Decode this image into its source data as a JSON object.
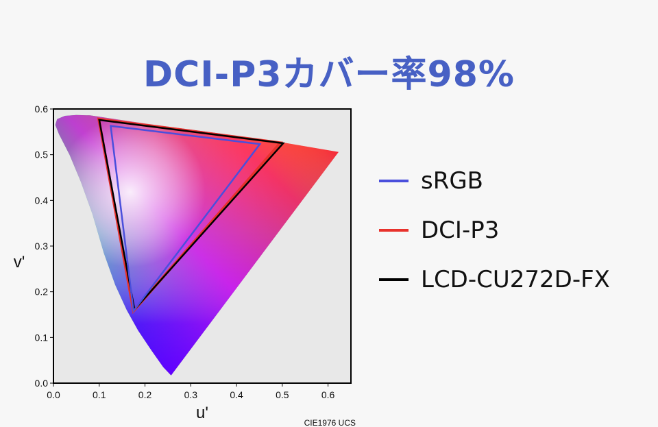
{
  "title": "DCI-P3カバー率98%",
  "chart_data": {
    "type": "scatter",
    "subtype": "chromaticity-diagram",
    "title": "DCI-P3カバー率98%",
    "xlabel": "u'",
    "ylabel": "v'",
    "annotation": "CIE1976 UCS",
    "xlim": [
      0.0,
      0.65
    ],
    "ylim": [
      0.0,
      0.6
    ],
    "xticks": [
      "0.0",
      "0.1",
      "0.2",
      "0.3",
      "0.4",
      "0.5",
      "0.6"
    ],
    "yticks": [
      "0.0",
      "0.1",
      "0.2",
      "0.3",
      "0.4",
      "0.5",
      "0.6"
    ],
    "grid": false,
    "legend_position": "right",
    "series": [
      {
        "name": "sRGB",
        "color": "#4a4fdc",
        "points": [
          [
            0.451,
            0.523
          ],
          [
            0.125,
            0.563
          ],
          [
            0.175,
            0.158
          ]
        ]
      },
      {
        "name": "DCI-P3",
        "color": "#e8322c",
        "points": [
          [
            0.496,
            0.526
          ],
          [
            0.099,
            0.578
          ],
          [
            0.175,
            0.158
          ]
        ]
      },
      {
        "name": "LCD-CU272D-FX",
        "color": "#000000",
        "points": [
          [
            0.502,
            0.525
          ],
          [
            0.1,
            0.576
          ],
          [
            0.177,
            0.161
          ]
        ]
      }
    ]
  },
  "legend": {
    "items": [
      {
        "label": "sRGB",
        "color": "#4a4fdc"
      },
      {
        "label": "DCI-P3",
        "color": "#e8322c"
      },
      {
        "label": "LCD-CU272D-FX",
        "color": "#000000"
      }
    ]
  }
}
